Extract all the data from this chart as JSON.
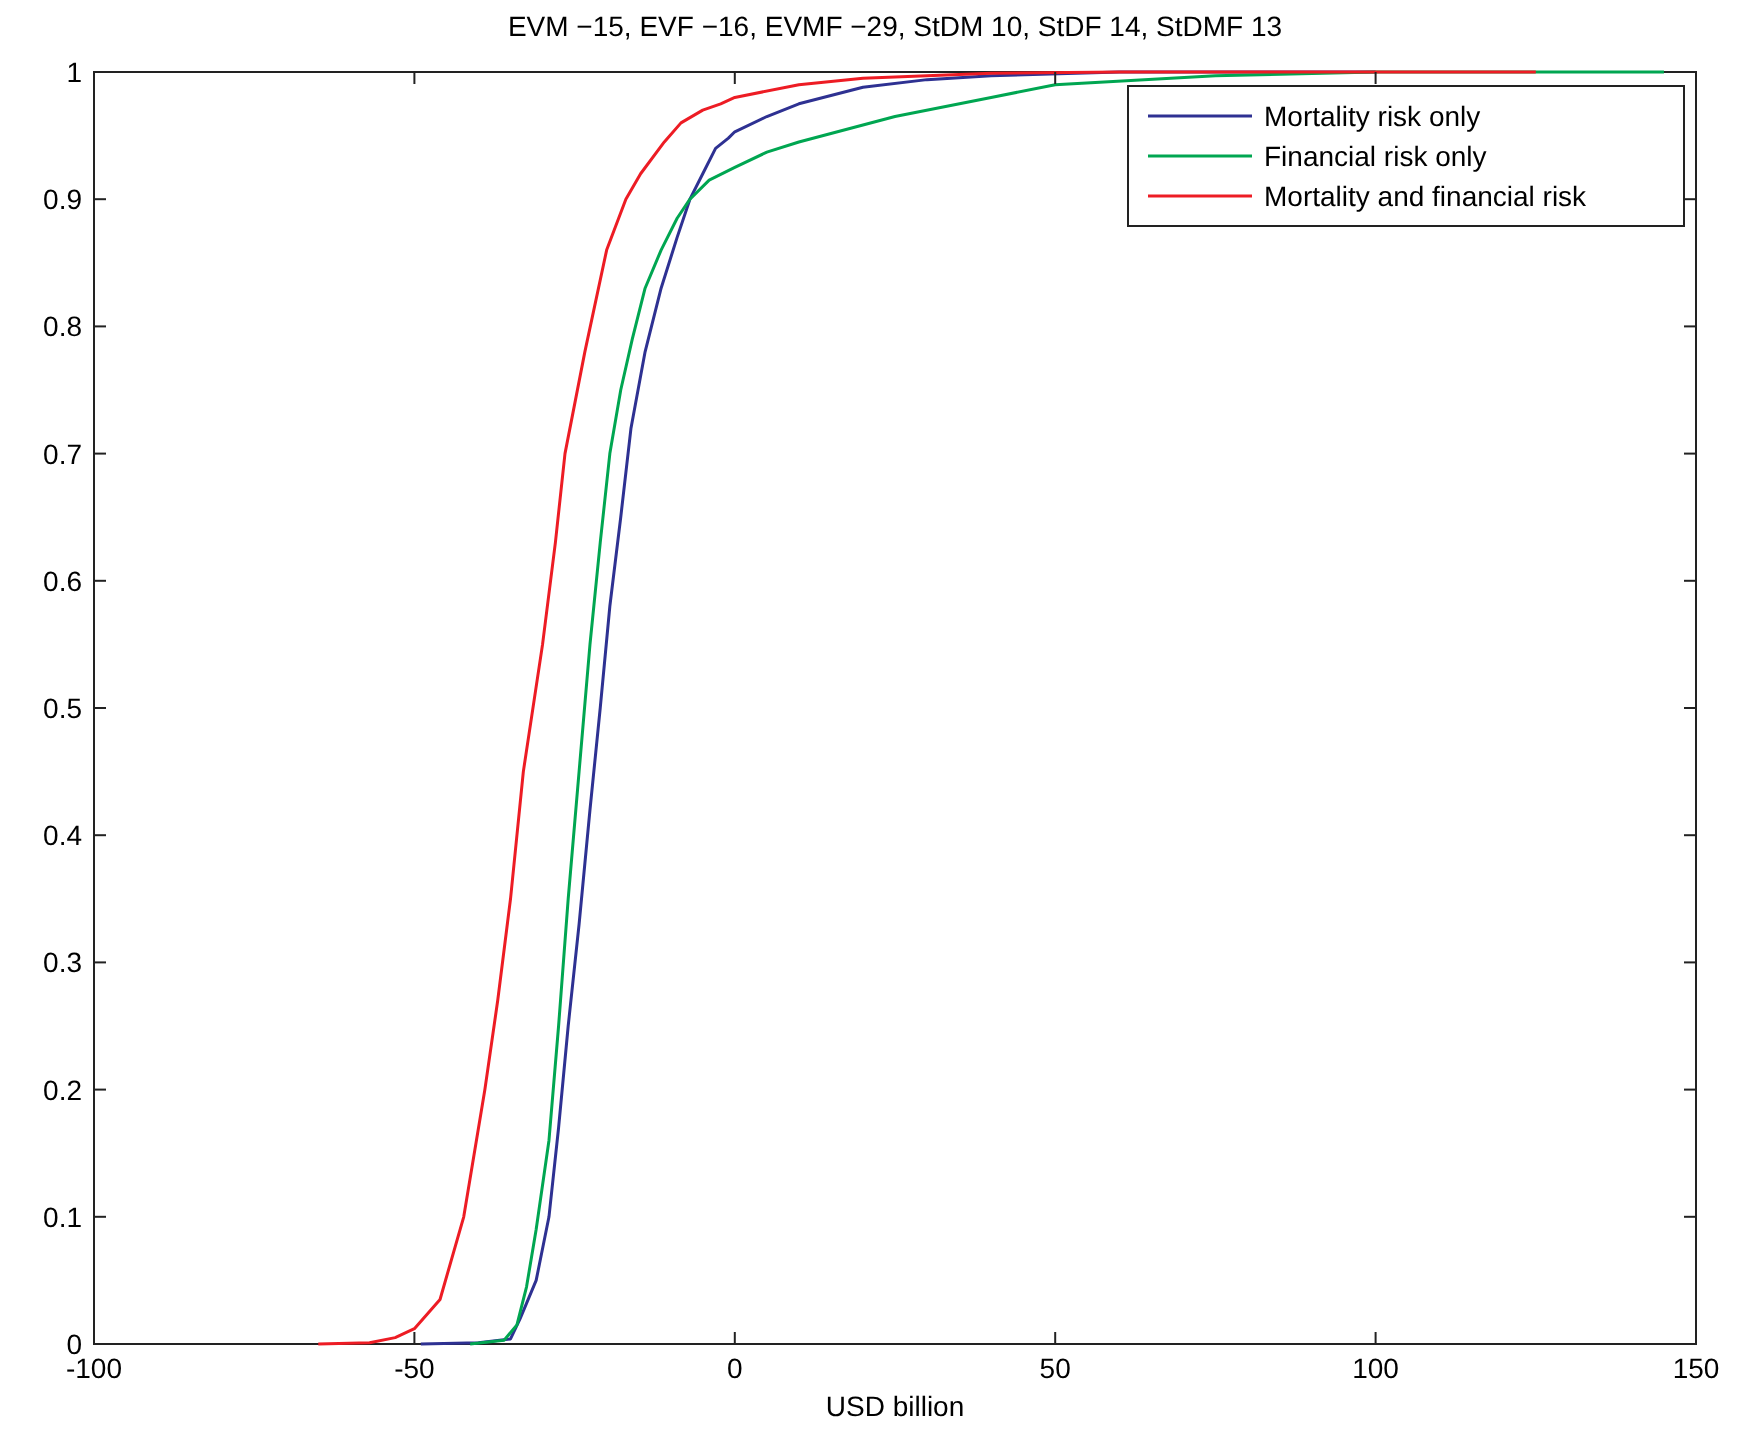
{
  "chart_data": {
    "type": "line",
    "title": "EVM −15, EVF −16, EVMF −29, StDM 10, StDF 14, StDMF 13",
    "xlabel": "USD billion",
    "xlim": [
      -100,
      150
    ],
    "xticks": [
      -100,
      -50,
      0,
      50,
      100,
      150
    ],
    "ylim": [
      0,
      1
    ],
    "yticks": [
      0,
      0.1,
      0.2,
      0.3,
      0.4,
      0.5,
      0.6,
      0.7,
      0.8,
      0.9,
      1
    ],
    "grid": false,
    "legend": "top right",
    "line_style": "solid",
    "series": [
      {
        "name": "Mortality risk only",
        "color": "#2e3192",
        "x": [
          -49,
          -40,
          -35,
          -33.5,
          -31,
          -29,
          -27.5,
          -26,
          -24.3,
          -22.6,
          -21,
          -19.5,
          -17.8,
          -16.2,
          -14,
          -11.5,
          -9,
          -7,
          -5,
          -3,
          -1,
          0,
          5,
          10,
          20,
          30,
          40,
          60,
          100
        ],
        "values": [
          0,
          0.001,
          0.004,
          0.02,
          0.05,
          0.1,
          0.17,
          0.25,
          0.33,
          0.42,
          0.5,
          0.58,
          0.65,
          0.72,
          0.78,
          0.83,
          0.87,
          0.9,
          0.92,
          0.94,
          0.948,
          0.953,
          0.965,
          0.975,
          0.988,
          0.994,
          0.997,
          1,
          1
        ]
      },
      {
        "name": "Financial risk only",
        "color": "#00a651",
        "x": [
          -41.3,
          -36,
          -34,
          -32.5,
          -31,
          -29,
          -27.5,
          -26,
          -24.3,
          -22.6,
          -21,
          -19.5,
          -17.8,
          -16,
          -14,
          -11.5,
          -9,
          -7,
          -4,
          0,
          5,
          10,
          25,
          40,
          50,
          75,
          100,
          145
        ],
        "values": [
          0,
          0.003,
          0.015,
          0.045,
          0.09,
          0.16,
          0.25,
          0.35,
          0.45,
          0.55,
          0.63,
          0.7,
          0.75,
          0.79,
          0.83,
          0.86,
          0.885,
          0.9,
          0.915,
          0.925,
          0.937,
          0.945,
          0.965,
          0.98,
          0.99,
          0.997,
          1,
          1
        ]
      },
      {
        "name": "Mortality and financial risk",
        "color": "#ed1c24",
        "x": [
          -65,
          -57,
          -53,
          -50,
          -46,
          -42.3,
          -39,
          -37,
          -35,
          -33,
          -30,
          -28,
          -26.5,
          -23.4,
          -20,
          -17,
          -14.7,
          -11,
          -8.4,
          -5,
          -2.2,
          0,
          10,
          20,
          40,
          60,
          125
        ],
        "values": [
          0,
          0.001,
          0.005,
          0.012,
          0.035,
          0.1,
          0.2,
          0.27,
          0.35,
          0.45,
          0.55,
          0.63,
          0.7,
          0.78,
          0.86,
          0.9,
          0.92,
          0.945,
          0.96,
          0.97,
          0.975,
          0.98,
          0.99,
          0.995,
          0.999,
          1,
          1
        ]
      }
    ]
  }
}
